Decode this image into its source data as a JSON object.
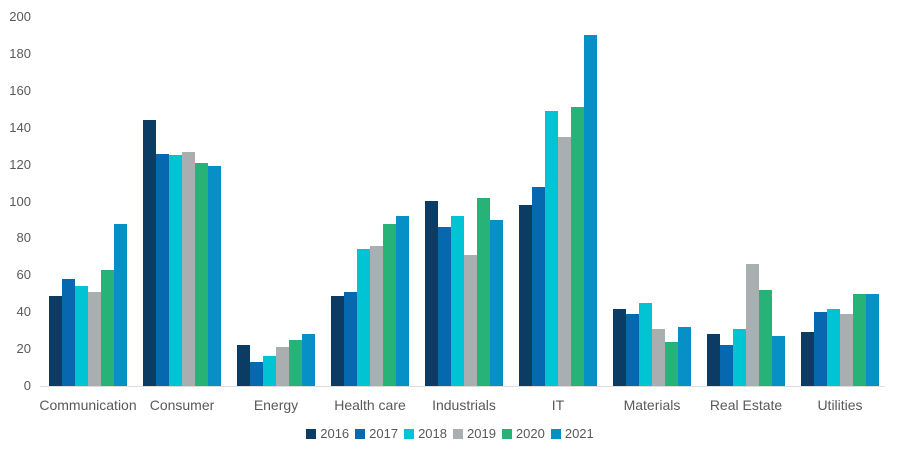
{
  "chart_data": {
    "type": "bar",
    "title": "",
    "xlabel": "",
    "ylabel": "",
    "categories": [
      "Communication",
      "Consumer",
      "Energy",
      "Health care",
      "Industrials",
      "IT",
      "Materials",
      "Real Estate",
      "Utilities"
    ],
    "series": [
      {
        "name": "2016",
        "color": "#0c3b63",
        "values": [
          49,
          144,
          22,
          49,
          100,
          98,
          42,
          28,
          29
        ]
      },
      {
        "name": "2017",
        "color": "#0669af",
        "values": [
          58,
          126,
          13,
          51,
          86,
          108,
          39,
          22,
          40
        ]
      },
      {
        "name": "2018",
        "color": "#00c3d4",
        "values": [
          54,
          125,
          16,
          74,
          92,
          149,
          45,
          31,
          42
        ]
      },
      {
        "name": "2019",
        "color": "#a9aeb1",
        "values": [
          51,
          127,
          21,
          76,
          71,
          135,
          31,
          66,
          39
        ]
      },
      {
        "name": "2020",
        "color": "#27b377",
        "values": [
          63,
          121,
          25,
          88,
          102,
          151,
          24,
          52,
          50
        ]
      },
      {
        "name": "2021",
        "color": "#0790c6",
        "values": [
          88,
          119,
          28,
          92,
          90,
          190,
          32,
          27,
          50
        ]
      }
    ],
    "ylim": [
      0,
      200
    ],
    "ytick_step": 20,
    "grid": false,
    "legend_position": "bottom",
    "axis_text_color": "#595959",
    "baseline_color": "#dcdcdc"
  }
}
